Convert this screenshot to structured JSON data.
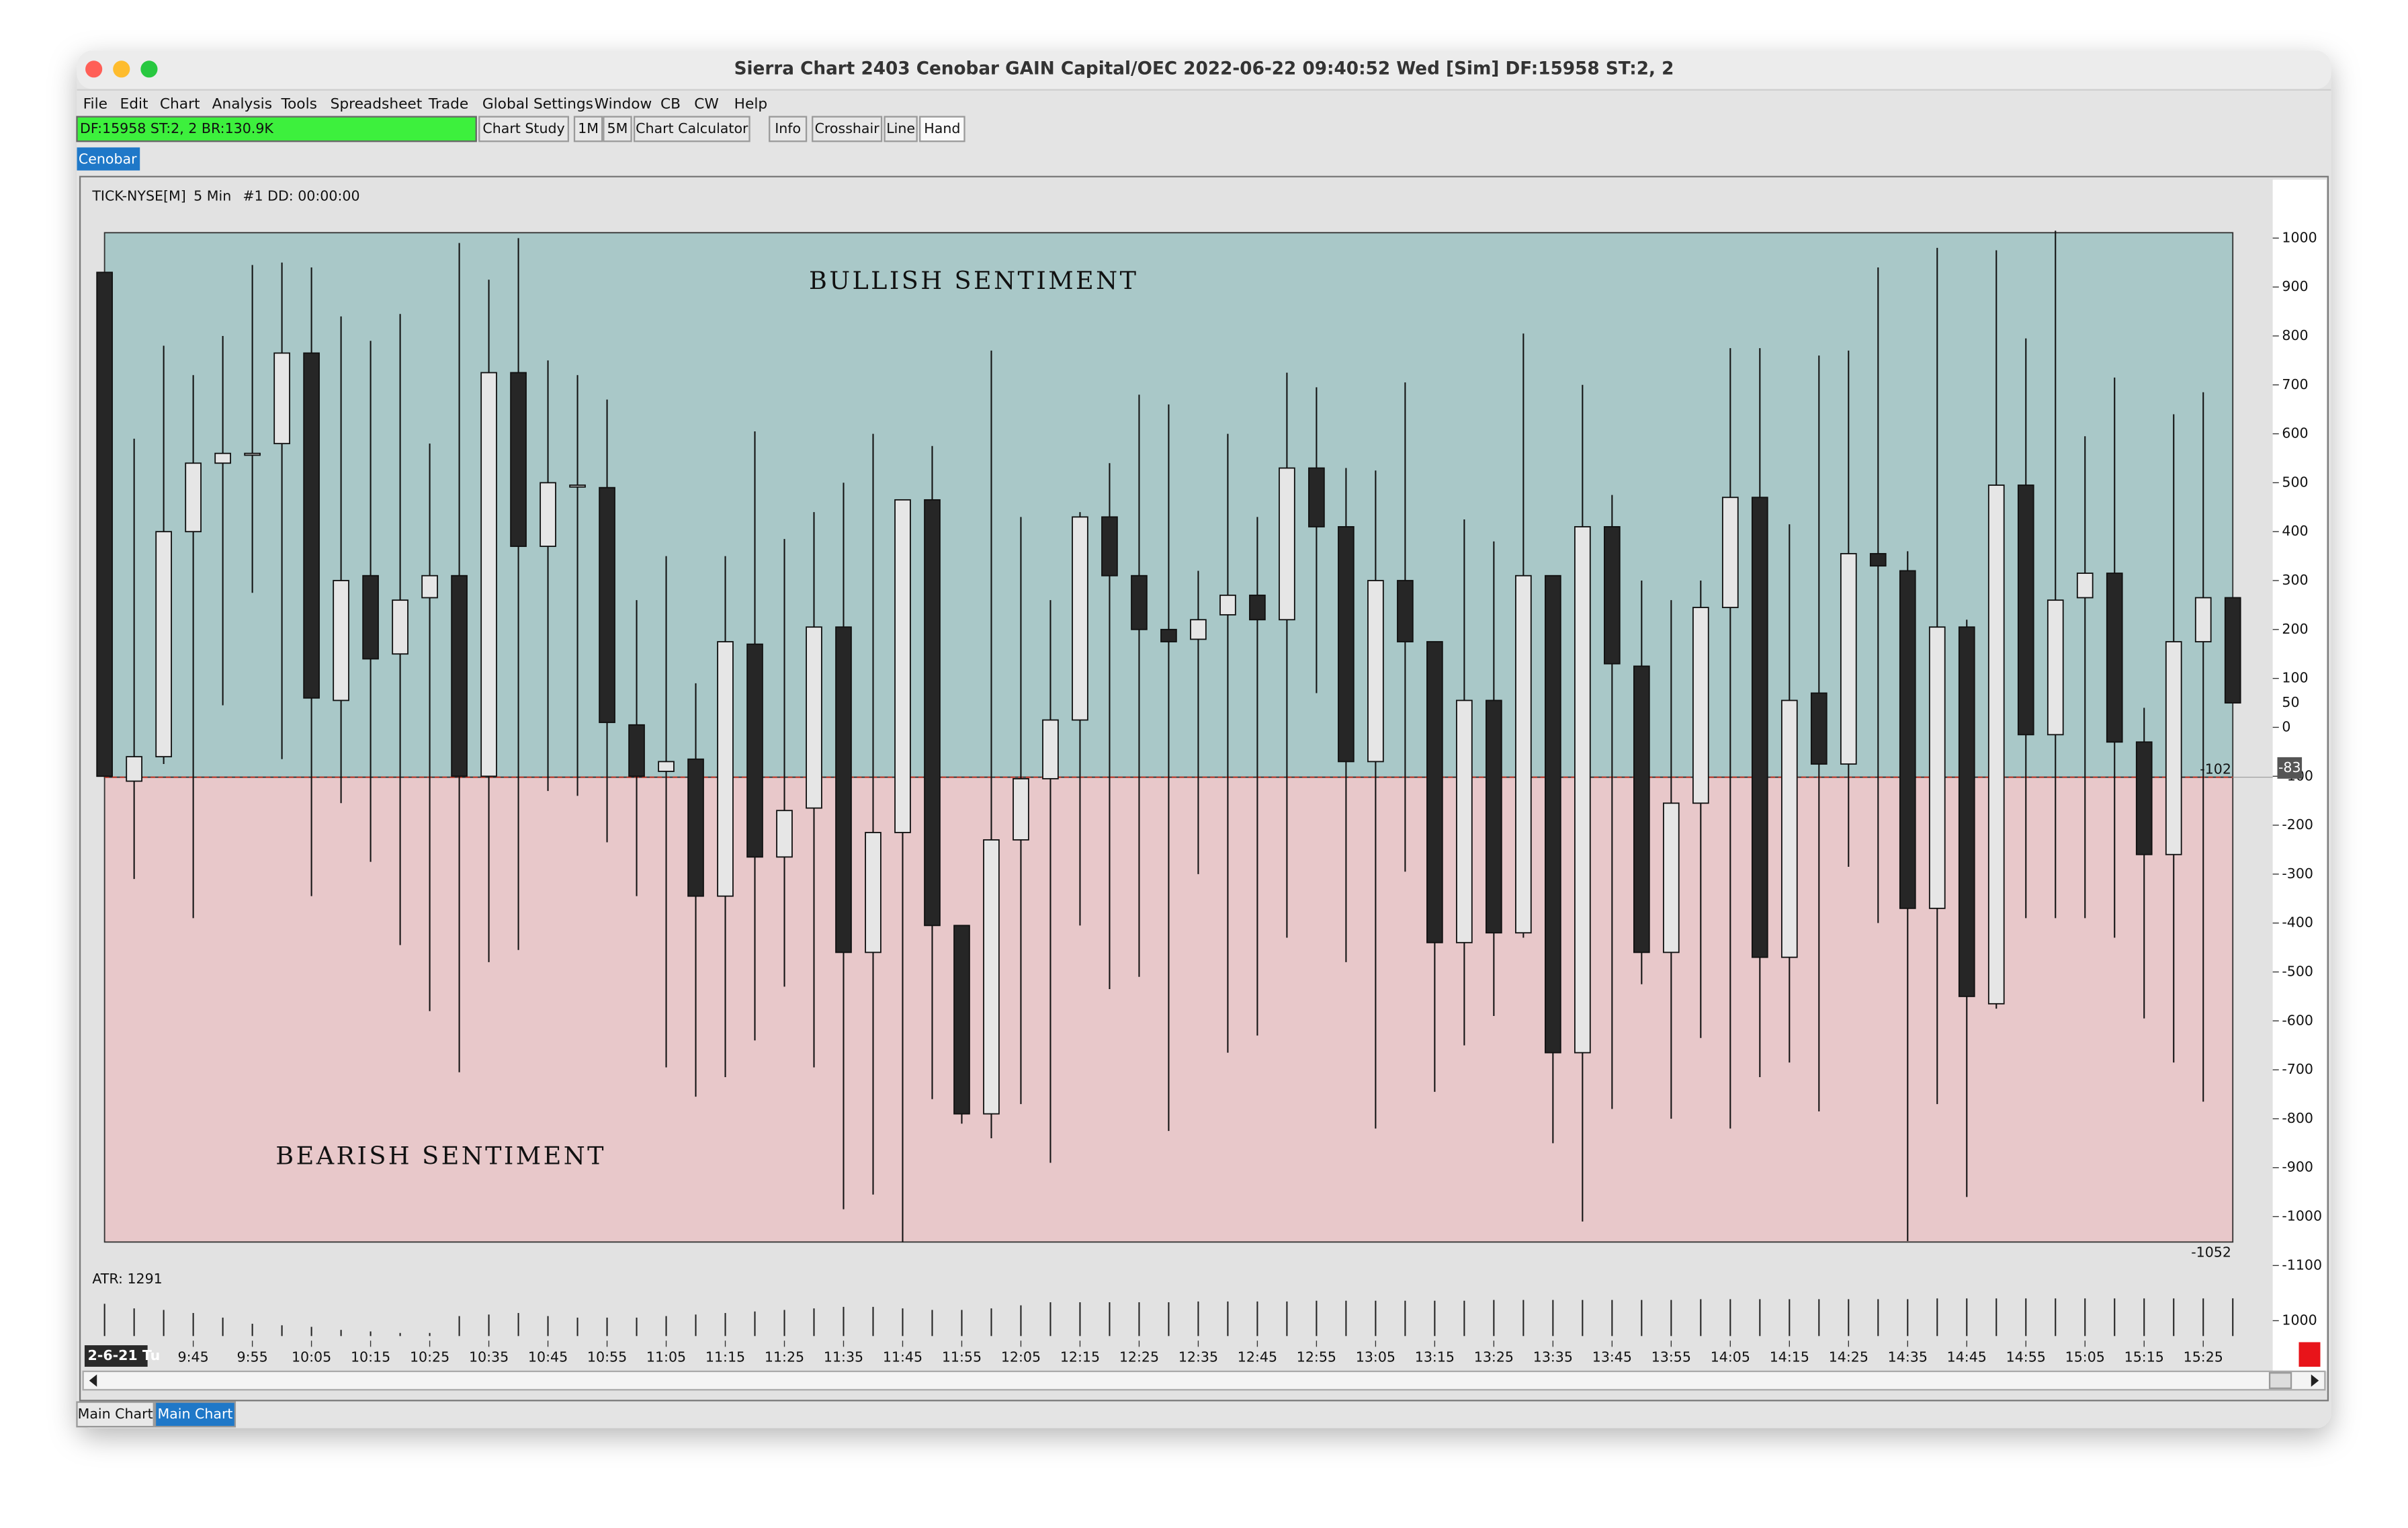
{
  "window": {
    "title": "Sierra Chart 2403 Cenobar  GAIN Capital/OEC 2022-06-22  09:40:52 Wed [Sim]  DF:15958  ST:2, 2"
  },
  "menu": [
    "File",
    "Edit",
    "Chart",
    "Analysis",
    "Tools",
    "Spreadsheet",
    "Trade",
    "Global Settings",
    "Window",
    "CB",
    "CW",
    "Help"
  ],
  "toolbar": {
    "status": "DF:15958  ST:2, 2  BR:130.9K",
    "buttons": [
      "Chart Study",
      "1M",
      "5M",
      "Chart Calculator",
      "Info",
      "Crosshair",
      "Line",
      "Hand"
    ]
  },
  "tab": "Cenobar",
  "chart_data": {
    "type": "candlestick",
    "title": "TICK-NYSE[M]",
    "interval": "5 Min",
    "subtitle": "#1 DD: 00:00:00",
    "date_label": "2-6-21 Tu",
    "categories": [
      null,
      null,
      null,
      "9:45",
      null,
      "9:55",
      null,
      "10:05",
      null,
      "10:15",
      null,
      "10:25",
      null,
      "10:35",
      null,
      "10:45",
      null,
      "10:55",
      null,
      "11:05",
      null,
      "11:15",
      null,
      "11:25",
      null,
      "11:35",
      null,
      "11:45",
      null,
      "11:55",
      null,
      "12:05",
      null,
      "12:15",
      null,
      "12:25",
      null,
      "12:35",
      null,
      "12:45",
      null,
      "12:55",
      null,
      "13:05",
      null,
      "13:15",
      null,
      "13:25",
      null,
      "13:35",
      null,
      "13:45",
      null,
      "13:55",
      null,
      "14:05",
      null,
      "14:15",
      null,
      "14:25",
      null,
      "14:35",
      null,
      "14:45",
      null,
      "14:55",
      null,
      "15:05",
      null,
      "15:15",
      null,
      "15:25",
      null
    ],
    "open": [
      930,
      -110,
      -60,
      400,
      540,
      560,
      580,
      765,
      55,
      310,
      150,
      265,
      310,
      -100,
      725,
      370,
      495,
      490,
      5,
      -90,
      -65,
      -345,
      170,
      -265,
      -165,
      205,
      -460,
      -215,
      465,
      -405,
      -790,
      -230,
      -105,
      15,
      430,
      310,
      200,
      180,
      230,
      270,
      220,
      530,
      410,
      -70,
      300,
      175,
      -440,
      55,
      -420,
      310,
      -665,
      410,
      125,
      -460,
      -155,
      245,
      470,
      -470,
      70,
      -75,
      355,
      320,
      -370,
      205,
      -565,
      495,
      -15,
      265,
      315,
      -30,
      -260,
      175,
      265
    ],
    "high": [
      930,
      590,
      780,
      720,
      800,
      945,
      950,
      940,
      840,
      790,
      845,
      580,
      990,
      915,
      1000,
      750,
      720,
      670,
      260,
      350,
      90,
      350,
      605,
      385,
      440,
      500,
      600,
      465,
      575,
      -405,
      770,
      430,
      260,
      440,
      540,
      680,
      660,
      320,
      600,
      430,
      725,
      695,
      530,
      525,
      705,
      175,
      425,
      380,
      805,
      310,
      700,
      475,
      300,
      260,
      300,
      775,
      775,
      415,
      760,
      770,
      940,
      360,
      980,
      220,
      975,
      795,
      1015,
      595,
      715,
      40,
      640,
      685,
      265
    ],
    "low": [
      -100,
      -310,
      -75,
      -390,
      45,
      275,
      -65,
      -345,
      -155,
      -275,
      -445,
      -580,
      -705,
      -480,
      -455,
      -130,
      -140,
      -235,
      -345,
      -695,
      -755,
      -715,
      -640,
      -530,
      -695,
      -985,
      -955,
      -1052,
      -760,
      -810,
      -840,
      -770,
      -890,
      -405,
      -535,
      -510,
      -825,
      -300,
      -665,
      -630,
      -430,
      70,
      -480,
      -820,
      -295,
      -745,
      -650,
      -590,
      -430,
      -850,
      -1010,
      -780,
      -525,
      -800,
      -635,
      -820,
      -715,
      -685,
      -785,
      -285,
      -400,
      -1050,
      -770,
      -960,
      -575,
      -390,
      -390,
      -390,
      -430,
      -595,
      -685,
      -765,
      50
    ],
    "close": [
      -100,
      -60,
      400,
      540,
      560,
      560,
      765,
      60,
      300,
      140,
      260,
      310,
      -100,
      725,
      370,
      500,
      495,
      10,
      -100,
      -70,
      -345,
      175,
      -265,
      -170,
      205,
      -460,
      -215,
      465,
      -405,
      -790,
      -230,
      -105,
      15,
      430,
      310,
      200,
      175,
      220,
      270,
      220,
      530,
      410,
      -70,
      300,
      175,
      -440,
      55,
      -420,
      310,
      -665,
      410,
      130,
      -460,
      -155,
      245,
      470,
      -470,
      55,
      -75,
      355,
      330,
      -370,
      205,
      -550,
      495,
      -15,
      260,
      315,
      -30,
      -260,
      175,
      265,
      50
    ],
    "up_color": "#e6e6e6",
    "down_color": "#262626",
    "ylim": [
      -1150,
      1110
    ],
    "yticks": [
      1000,
      900,
      800,
      700,
      600,
      500,
      400,
      300,
      200,
      100,
      0,
      -100,
      -200,
      -300,
      -400,
      -500,
      -600,
      -700,
      -800,
      -900,
      -1000,
      -1100
    ],
    "zones": [
      {
        "name": "BULLISH SENTIMENT",
        "range": [
          -102,
          1011
        ],
        "color": "#a9c8c8"
      },
      {
        "name": "BEARISH SENTIMENT",
        "range": [
          -1052,
          -102
        ],
        "color": "#e8c8ca"
      }
    ],
    "reference_line": {
      "value": -102,
      "color": "#c0392b"
    },
    "last_price": 50,
    "cursor_value": -83,
    "session_low": -1052,
    "atr": {
      "label": "ATR: 1291",
      "ylim": [
        800,
        1400
      ],
      "yticks": [
        1000
      ],
      "values": [
        1220,
        1160,
        1140,
        1100,
        1040,
        960,
        940,
        920,
        880,
        860,
        840,
        840,
        1060,
        1080,
        1100,
        1060,
        1040,
        1040,
        1040,
        1060,
        1080,
        1100,
        1120,
        1140,
        1160,
        1180,
        1180,
        1160,
        1140,
        1140,
        1160,
        1200,
        1240,
        1240,
        1240,
        1240,
        1240,
        1250,
        1250,
        1250,
        1250,
        1260,
        1260,
        1260,
        1260,
        1260,
        1260,
        1270,
        1270,
        1270,
        1270,
        1270,
        1270,
        1270,
        1280,
        1280,
        1280,
        1280,
        1280,
        1280,
        1280,
        1280,
        1290,
        1290,
        1290,
        1290,
        1290,
        1290,
        1290,
        1290,
        1290,
        1290,
        1291
      ]
    }
  },
  "bottom_tabs": [
    "Main Chart",
    "Main Chart"
  ]
}
